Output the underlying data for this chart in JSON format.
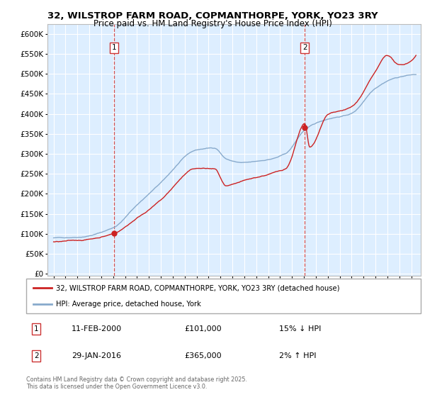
{
  "title_line1": "32, WILSTROP FARM ROAD, COPMANTHORPE, YORK, YO23 3RY",
  "title_line2": "Price paid vs. HM Land Registry's House Price Index (HPI)",
  "legend_label1": "32, WILSTROP FARM ROAD, COPMANTHORPE, YORK, YO23 3RY (detached house)",
  "legend_label2": "HPI: Average price, detached house, York",
  "sale1_date": "11-FEB-2000",
  "sale1_price": 101000,
  "sale1_note": "15% ↓ HPI",
  "sale2_date": "29-JAN-2016",
  "sale2_price": 365000,
  "sale2_note": "2% ↑ HPI",
  "footer": "Contains HM Land Registry data © Crown copyright and database right 2025.\nThis data is licensed under the Open Government Licence v3.0.",
  "yticks": [
    0,
    50000,
    100000,
    150000,
    200000,
    250000,
    300000,
    350000,
    400000,
    450000,
    500000,
    550000,
    600000
  ],
  "bg_color": "#ddeeff",
  "line1_color": "#cc2222",
  "line2_color": "#88aacc",
  "vline_color": "#cc3333",
  "grid_color": "#ffffff",
  "sale1_year": 2000.08,
  "sale2_year": 2016.07
}
